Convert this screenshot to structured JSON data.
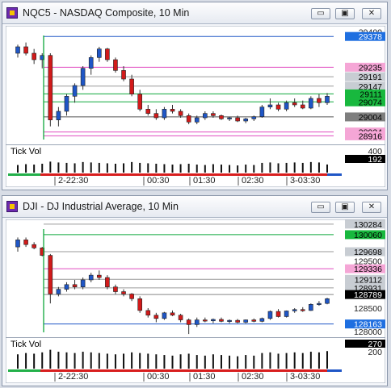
{
  "panels": [
    {
      "title": "NQC5 - NASDAQ Composite, 10 Min",
      "buttons": {
        "minimize": "▭",
        "restore": "▣",
        "close": "✕"
      },
      "indicator_label": "Tick Vol",
      "price_labels": [
        {
          "value": "29400",
          "kind": "axis"
        },
        {
          "value": "29378",
          "kind": "blue"
        },
        {
          "value": "29235",
          "kind": "pink"
        },
        {
          "value": "29191",
          "kind": "grey"
        },
        {
          "value": "29147",
          "kind": "grey"
        },
        {
          "value": "29111",
          "kind": "green"
        },
        {
          "value": "29074",
          "kind": "green"
        },
        {
          "value": "29004",
          "kind": "dark"
        },
        {
          "value": "28934",
          "kind": "pink"
        },
        {
          "value": "28916",
          "kind": "pink"
        }
      ],
      "volume_labels": [
        {
          "value": "400",
          "kind": "axis"
        },
        {
          "value": "192",
          "kind": "black"
        }
      ],
      "time_labels": [
        "2-22:30",
        "00:30",
        "01:30",
        "02:30",
        "3-03:30"
      ],
      "colors": {
        "up": "#1f56c6",
        "down": "#d21a1a",
        "blue": "#1f56c6",
        "green": "#0fa83c",
        "pink": "#e04cc0",
        "grey": "#707070"
      },
      "chart_data": {
        "type": "candlestick",
        "ylim": [
          28880,
          29420
        ],
        "candles": [
          [
            29300,
            29340,
            29280,
            29330
          ],
          [
            29330,
            29350,
            29290,
            29300
          ],
          [
            29300,
            29320,
            29250,
            29270
          ],
          [
            29270,
            29300,
            29230,
            29290
          ],
          [
            29290,
            29300,
            28960,
            28990
          ],
          [
            28990,
            29050,
            28960,
            29030
          ],
          [
            29030,
            29110,
            29010,
            29100
          ],
          [
            29100,
            29160,
            29070,
            29150
          ],
          [
            29150,
            29240,
            29130,
            29230
          ],
          [
            29230,
            29290,
            29200,
            29280
          ],
          [
            29280,
            29330,
            29260,
            29320
          ],
          [
            29320,
            29325,
            29260,
            29270
          ],
          [
            29270,
            29280,
            29210,
            29220
          ],
          [
            29220,
            29240,
            29170,
            29180
          ],
          [
            29180,
            29200,
            29100,
            29110
          ],
          [
            29110,
            29130,
            29030,
            29040
          ],
          [
            29040,
            29060,
            29010,
            29020
          ],
          [
            29020,
            29040,
            28990,
            29000
          ],
          [
            29000,
            29050,
            28990,
            29040
          ],
          [
            29040,
            29060,
            29020,
            29030
          ],
          [
            29030,
            29040,
            29000,
            29010
          ],
          [
            29010,
            29020,
            28970,
            28980
          ],
          [
            28980,
            29010,
            28970,
            29000
          ],
          [
            29000,
            29030,
            28990,
            29020
          ],
          [
            29020,
            29030,
            29000,
            29010
          ],
          [
            29010,
            29015,
            28990,
            28995
          ],
          [
            28995,
            29005,
            28985,
            29000
          ],
          [
            29000,
            29010,
            28980,
            28985
          ],
          [
            28985,
            29000,
            28975,
            28995
          ],
          [
            28995,
            29010,
            28985,
            29005
          ],
          [
            29005,
            29060,
            29000,
            29050
          ],
          [
            29050,
            29090,
            29040,
            29060
          ],
          [
            29060,
            29070,
            29030,
            29040
          ],
          [
            29040,
            29080,
            29030,
            29070
          ],
          [
            29070,
            29090,
            29050,
            29060
          ],
          [
            29060,
            29080,
            29040,
            29045
          ],
          [
            29045,
            29100,
            29040,
            29090
          ],
          [
            29090,
            29110,
            29050,
            29070
          ],
          [
            29070,
            29115,
            29060,
            29100
          ]
        ],
        "volume": [
          180,
          200,
          190,
          210,
          260,
          240,
          230,
          220,
          250,
          240,
          230,
          220,
          210,
          220,
          250,
          230,
          220,
          210,
          200,
          190,
          200,
          210,
          190,
          180,
          200,
          190,
          180,
          170,
          190,
          180,
          230,
          240,
          220,
          230,
          240,
          230,
          250,
          240,
          192
        ],
        "vol_max": 400
      }
    },
    {
      "title": "DJI - DJ Industrial Average, 10 Min",
      "buttons": {
        "minimize": "▭",
        "restore": "▣",
        "close": "✕"
      },
      "indicator_label": "Tick Vol",
      "price_labels": [
        {
          "value": "130284",
          "kind": "grey"
        },
        {
          "value": "130060",
          "kind": "green"
        },
        {
          "value": "129698",
          "kind": "grey"
        },
        {
          "value": "129500",
          "kind": "axis"
        },
        {
          "value": "129336",
          "kind": "pink"
        },
        {
          "value": "129112",
          "kind": "grey"
        },
        {
          "value": "128931",
          "kind": "grey"
        },
        {
          "value": "128789",
          "kind": "black"
        },
        {
          "value": "128500",
          "kind": "axis"
        },
        {
          "value": "128163",
          "kind": "blue"
        },
        {
          "value": "128000",
          "kind": "axis"
        }
      ],
      "volume_labels": [
        {
          "value": "270",
          "kind": "black"
        },
        {
          "value": "200",
          "kind": "axis"
        }
      ],
      "time_labels": [
        "2-22:30",
        "00:30",
        "01:30",
        "02:30",
        "3-03:30"
      ],
      "colors": {
        "up": "#1f56c6",
        "down": "#d21a1a",
        "blue": "#1f56c6",
        "green": "#0fa83c",
        "pink": "#e04cc0",
        "grey": "#707070"
      },
      "chart_data": {
        "type": "candlestick",
        "ylim": [
          127900,
          130350
        ],
        "candles": [
          [
            129800,
            130000,
            129700,
            129950
          ],
          [
            129950,
            130000,
            129800,
            129850
          ],
          [
            129850,
            129900,
            129750,
            129780
          ],
          [
            129780,
            129800,
            129600,
            129620
          ],
          [
            129620,
            129650,
            128600,
            128800
          ],
          [
            128800,
            128950,
            128750,
            128900
          ],
          [
            128900,
            129050,
            128850,
            129000
          ],
          [
            129000,
            129100,
            128900,
            128950
          ],
          [
            128950,
            129150,
            128900,
            129100
          ],
          [
            129100,
            129250,
            129050,
            129200
          ],
          [
            129200,
            129300,
            129100,
            129150
          ],
          [
            129150,
            129200,
            128900,
            128950
          ],
          [
            128950,
            129000,
            128800,
            128850
          ],
          [
            128850,
            128900,
            128750,
            128800
          ],
          [
            128800,
            128820,
            128650,
            128700
          ],
          [
            128700,
            128750,
            128400,
            128450
          ],
          [
            128450,
            128500,
            128300,
            128350
          ],
          [
            128350,
            128400,
            128200,
            128280
          ],
          [
            128280,
            128420,
            128250,
            128400
          ],
          [
            128400,
            128450,
            128330,
            128350
          ],
          [
            128350,
            128380,
            128200,
            128250
          ],
          [
            128250,
            128280,
            127950,
            128150
          ],
          [
            128150,
            128300,
            128100,
            128250
          ],
          [
            128250,
            128300,
            128200,
            128230
          ],
          [
            128230,
            128280,
            128180,
            128260
          ],
          [
            128260,
            128300,
            128200,
            128220
          ],
          [
            128220,
            128260,
            128180,
            128240
          ],
          [
            128240,
            128270,
            128180,
            128200
          ],
          [
            128200,
            128260,
            128180,
            128250
          ],
          [
            128250,
            128280,
            128200,
            128220
          ],
          [
            128220,
            128300,
            128200,
            128280
          ],
          [
            128280,
            128450,
            128250,
            128430
          ],
          [
            128430,
            128480,
            128300,
            128320
          ],
          [
            128320,
            128450,
            128300,
            128440
          ],
          [
            128440,
            128500,
            128400,
            128470
          ],
          [
            128470,
            128520,
            128420,
            128450
          ],
          [
            128450,
            128600,
            128440,
            128580
          ],
          [
            128580,
            128650,
            128550,
            128600
          ],
          [
            128600,
            128720,
            128580,
            128700
          ]
        ],
        "volume": [
          220,
          240,
          230,
          250,
          290,
          260,
          250,
          240,
          260,
          250,
          240,
          230,
          220,
          230,
          250,
          240,
          230,
          220,
          210,
          200,
          220,
          230,
          210,
          200,
          220,
          210,
          200,
          190,
          210,
          200,
          240,
          250,
          230,
          240,
          250,
          240,
          260,
          250,
          270
        ],
        "vol_max": 310
      }
    }
  ]
}
